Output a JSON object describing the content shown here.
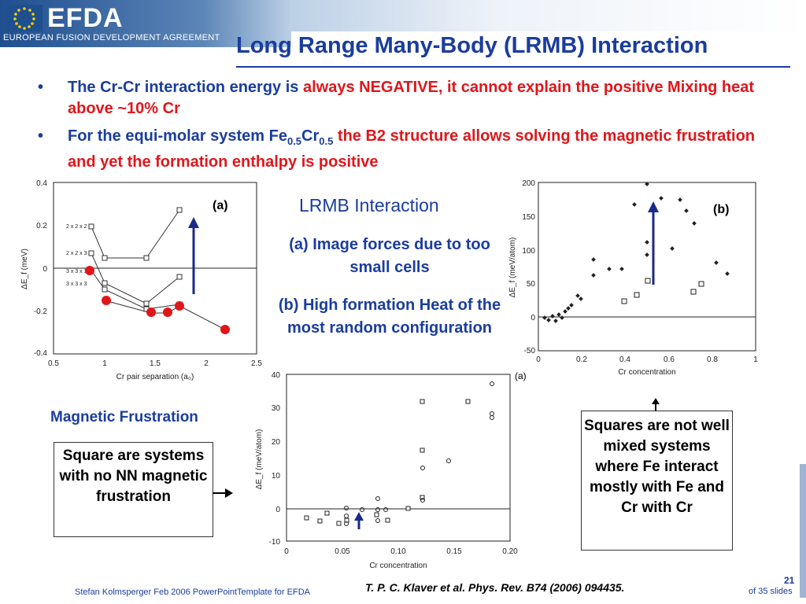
{
  "header": {
    "logo": "EFDA",
    "logo_subtitle": "EUROPEAN FUSION DEVELOPMENT AGREEMENT"
  },
  "title": "Long Range Many-Body (LRMB) Interaction",
  "bullets": [
    {
      "part1": "The Cr-Cr interaction energy is ",
      "part2": "always NEGATIVE, it cannot explain the positive Mixing heat above  ~10% Cr"
    },
    {
      "part1": "For the equi-molar system Fe",
      "sub1": "0.5",
      "part2": "Cr",
      "sub2": "0.5",
      "part3": " the B2 structure allows solving the magnetic frustration and yet the formation enthalpy is positive"
    }
  ],
  "middle": {
    "title": "LRMB Interaction",
    "item_a": "(a) Image forces due to too small cells",
    "item_b": "(b) High formation Heat of the most random configuration"
  },
  "magnetic_frustration_label": "Magnetic Frustration",
  "left_box": "Square are systems with no NN magnetic frustration",
  "right_box": "Squares are not well mixed systems where Fe interact mostly with Fe and Cr with Cr",
  "plot_a": {
    "panel_label": "(a)",
    "xlabel": "Cr pair separation (a₀)",
    "ylabel": "ΔE_f  (meV)",
    "x_ticks": [
      "0.5",
      "1",
      "1.5",
      "2",
      "2.5"
    ],
    "y_ticks": [
      "0.4",
      "0.2",
      "0",
      "-0.2",
      "-0.4"
    ],
    "series_labels": [
      "2 x 2 x 2",
      "2 x 2 x 3",
      "3 x 3 x 3",
      "3 x 3 x 3"
    ],
    "colors": {
      "red": "#e0161b",
      "arrow": "#1a2a8a"
    }
  },
  "plot_b": {
    "panel_label": "(b)",
    "xlabel": "Cr concentration",
    "ylabel": "ΔE_f  (meV/atom)",
    "x_ticks": [
      "0",
      "0.2",
      "0.4",
      "0.6",
      "0.8",
      "1"
    ],
    "y_ticks": [
      "200",
      "150",
      "100",
      "50",
      "0",
      "-50"
    ]
  },
  "plot_c": {
    "panel_label": "(a)",
    "xlabel": "Cr concentration",
    "ylabel": "ΔE_f  (meV/atom)",
    "x_ticks": [
      "0",
      "0.05",
      "0.10",
      "0.15",
      "0.20"
    ],
    "y_ticks": [
      "40",
      "30",
      "20",
      "10",
      "0",
      "-10"
    ]
  },
  "footer": {
    "left": "Stefan Kolmsperger Feb 2006 PowerPointTemplate for EFDA",
    "reference": "T. P. C. Klaver et al. Phys. Rev. B74 (2006) 094435.",
    "page": "21",
    "of": "of  35 slides"
  }
}
